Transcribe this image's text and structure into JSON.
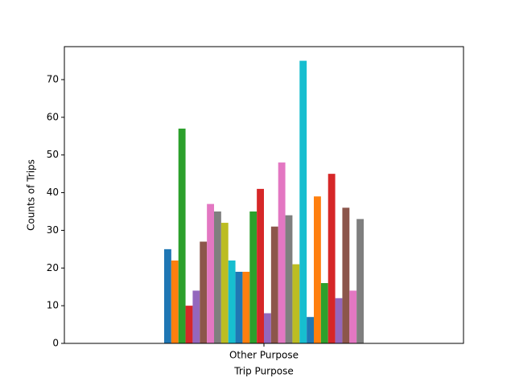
{
  "chart_data": {
    "type": "bar",
    "xlabel": "Trip Purpose",
    "ylabel": "Counts of Trips",
    "categories": [
      "Other Purpose"
    ],
    "series": [
      {
        "color": "#1f77b4",
        "values": [
          25
        ]
      },
      {
        "color": "#ff7f0e",
        "values": [
          22
        ]
      },
      {
        "color": "#2ca02c",
        "values": [
          57
        ]
      },
      {
        "color": "#d62728",
        "values": [
          10
        ]
      },
      {
        "color": "#9467bd",
        "values": [
          14
        ]
      },
      {
        "color": "#8c564b",
        "values": [
          27
        ]
      },
      {
        "color": "#e377c2",
        "values": [
          37
        ]
      },
      {
        "color": "#7f7f7f",
        "values": [
          35
        ]
      },
      {
        "color": "#bcbd22",
        "values": [
          32
        ]
      },
      {
        "color": "#17becf",
        "values": [
          22
        ]
      },
      {
        "color": "#1f77b4",
        "values": [
          19
        ]
      },
      {
        "color": "#ff7f0e",
        "values": [
          19
        ]
      },
      {
        "color": "#2ca02c",
        "values": [
          35
        ]
      },
      {
        "color": "#d62728",
        "values": [
          41
        ]
      },
      {
        "color": "#9467bd",
        "values": [
          8
        ]
      },
      {
        "color": "#8c564b",
        "values": [
          31
        ]
      },
      {
        "color": "#e377c2",
        "values": [
          48
        ]
      },
      {
        "color": "#7f7f7f",
        "values": [
          34
        ]
      },
      {
        "color": "#bcbd22",
        "values": [
          21
        ]
      },
      {
        "color": "#17becf",
        "values": [
          75
        ]
      },
      {
        "color": "#1f77b4",
        "values": [
          7
        ]
      },
      {
        "color": "#ff7f0e",
        "values": [
          39
        ]
      },
      {
        "color": "#2ca02c",
        "values": [
          16
        ]
      },
      {
        "color": "#d62728",
        "values": [
          45
        ]
      },
      {
        "color": "#9467bd",
        "values": [
          12
        ]
      },
      {
        "color": "#8c564b",
        "values": [
          36
        ]
      },
      {
        "color": "#e377c2",
        "values": [
          14
        ]
      },
      {
        "color": "#7f7f7f",
        "values": [
          33
        ]
      }
    ],
    "ylim": [
      0,
      78.75
    ],
    "yticks": [
      0,
      10,
      20,
      30,
      40,
      50,
      60,
      70
    ],
    "grid": false
  }
}
